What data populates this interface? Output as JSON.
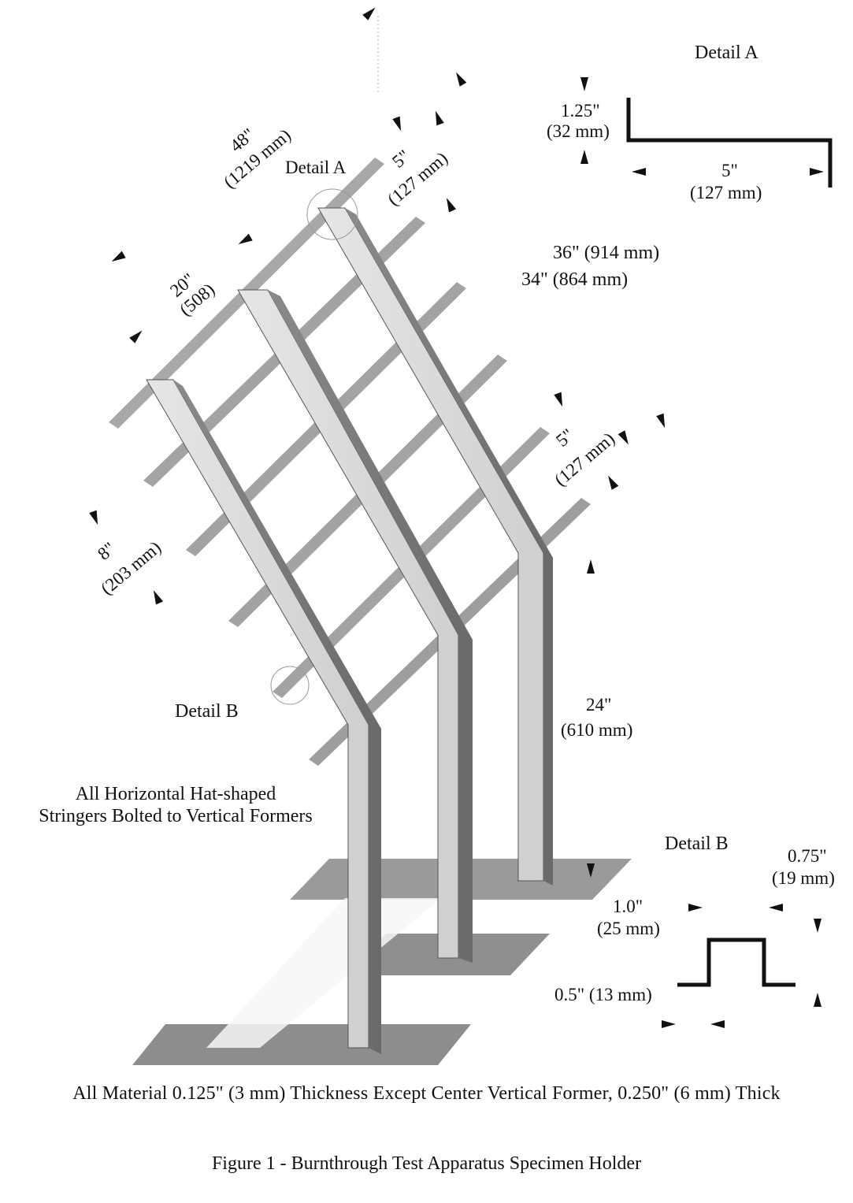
{
  "labels": {
    "detail_a_title": "Detail A",
    "detail_a_marker": "Detail A",
    "detail_b_title": "Detail B",
    "detail_b_marker": "Detail B",
    "dim_48_in": "48\"",
    "dim_48_mm": "(1219 mm)",
    "dim_5_top_in": "5\"",
    "dim_5_top_mm": "(127 mm)",
    "dim_20_in": "20\"",
    "dim_20_mm": "(508)",
    "dim_36": "36\" (914 mm)",
    "dim_34": "34\" (864 mm)",
    "dim_5_mid_in": "5\"",
    "dim_5_mid_mm": "(127 mm)",
    "dim_8_in": "8\"",
    "dim_8_mm": "(203 mm)",
    "dim_24_in": "24\"",
    "dim_24_mm": "(610 mm)",
    "detail_a_height_in": "1.25\"",
    "detail_a_height_mm": "(32 mm)",
    "detail_a_width_in": "5\"",
    "detail_a_width_mm": "(127 mm)",
    "detail_b_height_in": "0.75\"",
    "detail_b_height_mm": "(19 mm)",
    "detail_b_top_in": "1.0\"",
    "detail_b_top_mm": "(25 mm)",
    "detail_b_flange": "0.5\" (13 mm)"
  },
  "notes": {
    "stringers_line1": "All Horizontal Hat-shaped",
    "stringers_line2": "Stringers Bolted to Vertical Formers",
    "material": "All Material 0.125\" (3 mm) Thickness Except Center Vertical Former, 0.250\" (6 mm) Thick"
  },
  "caption": "Figure 1 - Burnthrough Test Apparatus Specimen Holder"
}
